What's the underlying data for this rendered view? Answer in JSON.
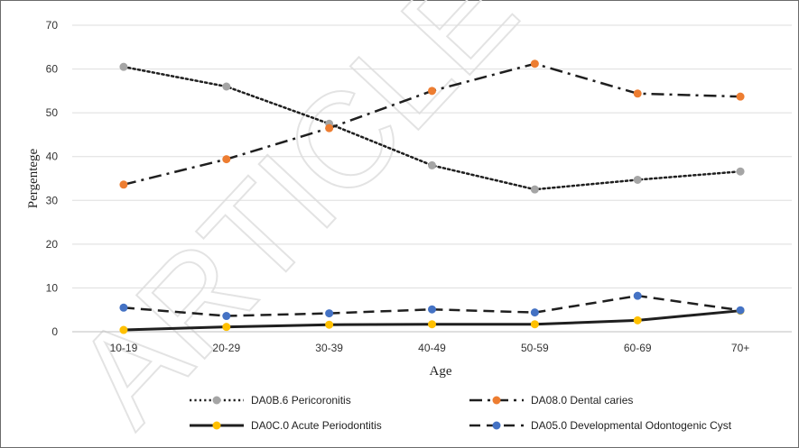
{
  "watermark": "ARTICLE",
  "chart_data": {
    "type": "line",
    "title": "",
    "xlabel": "Age",
    "ylabel": "Pergentege",
    "categories": [
      "10-19",
      "20-29",
      "30-39",
      "40-49",
      "50-59",
      "60-69",
      "70+"
    ],
    "ylim": [
      0,
      70
    ],
    "yticks": [
      0,
      10,
      20,
      30,
      40,
      50,
      60,
      70
    ],
    "grid": true,
    "legend_position": "bottom",
    "series": [
      {
        "name": "DA0B.6 Pericoronitis",
        "values": [
          60.5,
          56,
          47.5,
          38,
          32.5,
          34.7,
          36.6
        ],
        "color": "#a5a5a5",
        "line_color": "#1f1f1f",
        "style": "dotted"
      },
      {
        "name": "DA08.0 Dental caries",
        "values": [
          33.6,
          39.4,
          46.5,
          55,
          61.2,
          54.4,
          53.7
        ],
        "color": "#ed7d31",
        "line_color": "#1f1f1f",
        "style": "dashdot"
      },
      {
        "name": "DA0C.0 Acute Periodontitis",
        "values": [
          0.4,
          1.1,
          1.6,
          1.7,
          1.7,
          2.6,
          4.8
        ],
        "color": "#ffc000",
        "line_color": "#1f1f1f",
        "style": "solid"
      },
      {
        "name": "DA05.0 Developmental Odontogenic Cyst",
        "values": [
          5.5,
          3.6,
          4.2,
          5.1,
          4.4,
          8.2,
          4.9
        ],
        "color": "#4472c4",
        "line_color": "#1f1f1f",
        "style": "dashed"
      }
    ]
  }
}
